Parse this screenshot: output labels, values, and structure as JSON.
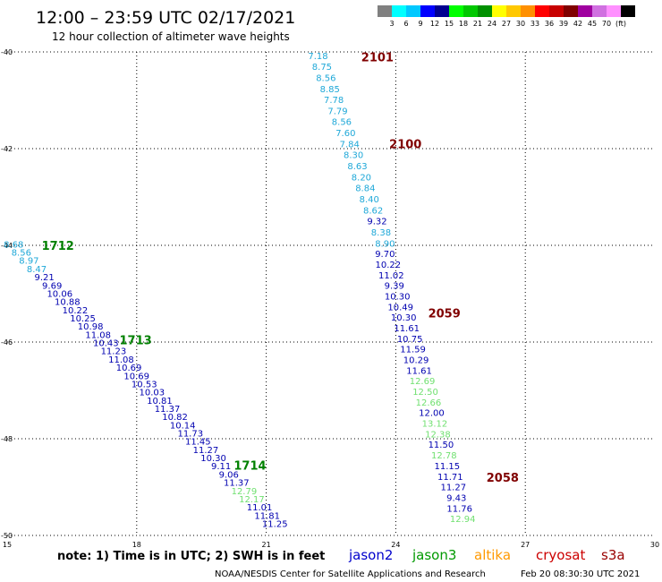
{
  "header": {
    "title": "12:00 – 23:59 UTC 02/17/2021",
    "subtitle": "12 hour collection of altimeter wave heights"
  },
  "color_scale": {
    "unit": "(ft)",
    "bins": [
      {
        "label": "",
        "color": "#808080"
      },
      {
        "label": "3",
        "color": "#00ffff"
      },
      {
        "label": "6",
        "color": "#00c8ff"
      },
      {
        "label": "9",
        "color": "#0000ff"
      },
      {
        "label": "12",
        "color": "#000090"
      },
      {
        "label": "15",
        "color": "#00ff00"
      },
      {
        "label": "18",
        "color": "#00c800"
      },
      {
        "label": "21",
        "color": "#009000"
      },
      {
        "label": "24",
        "color": "#ffff00"
      },
      {
        "label": "27",
        "color": "#ffc800"
      },
      {
        "label": "30",
        "color": "#ff9000"
      },
      {
        "label": "33",
        "color": "#ff0000"
      },
      {
        "label": "36",
        "color": "#c80000"
      },
      {
        "label": "39",
        "color": "#800000"
      },
      {
        "label": "42",
        "color": "#a000a0"
      },
      {
        "label": "45",
        "color": "#d070e0"
      },
      {
        "label": "70",
        "color": "#ff90ff"
      },
      {
        "label": "",
        "color": "#000000"
      }
    ]
  },
  "chart_data": {
    "type": "scatter",
    "title": "12:00 – 23:59 UTC 02/17/2021",
    "subtitle": "12 hour collection of altimeter wave heights",
    "xlim": [
      15,
      30
    ],
    "ylim": [
      -50,
      -40
    ],
    "x_ticks": [
      "15",
      "18",
      "21",
      "24",
      "27",
      "30"
    ],
    "y_ticks": [
      "-40",
      "-42",
      "-44",
      "-46",
      "-48",
      "-50"
    ],
    "colors": {
      "cyan": "#1fa8d8",
      "navy": "#0000b0",
      "light_green": "#70e070"
    },
    "pass_labels": [
      {
        "text": "2101",
        "x": 23.2,
        "y": -40.1,
        "color": "#800000"
      },
      {
        "text": "2100",
        "x": 23.85,
        "y": -41.9,
        "color": "#800000"
      },
      {
        "text": "2059",
        "x": 24.75,
        "y": -45.4,
        "color": "#800000"
      },
      {
        "text": "2058",
        "x": 26.1,
        "y": -48.8,
        "color": "#800000"
      },
      {
        "text": "1712",
        "x": 15.8,
        "y": -44.0,
        "color": "#008000"
      },
      {
        "text": "1713",
        "x": 17.6,
        "y": -45.95,
        "color": "#008000"
      },
      {
        "text": "1714",
        "x": 20.25,
        "y": -48.55,
        "color": "#008000"
      }
    ],
    "tracks": [
      {
        "name": "",
        "x_start": 22.2,
        "y_start": -40.07,
        "x_end": 23.75,
        "y_end": -43.95,
        "labels": [
          "7.18",
          "8.75",
          "8.56",
          "8.85",
          "7.78",
          "7.79",
          "8.56",
          "7.60",
          "7.84",
          "8.30",
          "8.63",
          "8.20",
          "8.84",
          "8.40",
          "8.62",
          "9.32",
          "8.38",
          "8.90"
        ],
        "colors": [
          "cyan",
          "cyan",
          "cyan",
          "cyan",
          "cyan",
          "cyan",
          "cyan",
          "cyan",
          "cyan",
          "cyan",
          "cyan",
          "cyan",
          "cyan",
          "cyan",
          "cyan",
          "navy",
          "cyan",
          "cyan"
        ]
      },
      {
        "name": "",
        "x_start": 23.75,
        "y_start": -44.17,
        "x_end": 25.55,
        "y_end": -49.65,
        "labels": [
          "9.70",
          "10.22",
          "11.02",
          "9.39",
          "10.30",
          "10.49",
          "10.30",
          "11.61",
          "10.75",
          "11.59",
          "10.29",
          "11.61",
          "12.69",
          "12.50",
          "12.66",
          "12.00",
          "13.12",
          "12.38",
          "11.50",
          "12.78",
          "11.15",
          "11.71",
          "11.27",
          "9.43",
          "11.76",
          "12.94"
        ],
        "colors": [
          "navy",
          "navy",
          "navy",
          "navy",
          "navy",
          "navy",
          "navy",
          "navy",
          "navy",
          "navy",
          "navy",
          "navy",
          "light_green",
          "light_green",
          "light_green",
          "navy",
          "light_green",
          "light_green",
          "navy",
          "light_green",
          "navy",
          "navy",
          "navy",
          "navy",
          "navy",
          "light_green"
        ]
      },
      {
        "name": "",
        "x_start": 15.15,
        "y_start": -43.97,
        "x_end": 21.2,
        "y_end": -49.75,
        "labels": [
          "8.68",
          "8.56",
          "8.97",
          "8.47",
          "9.21",
          "9.69",
          "10.06",
          "10.88",
          "10.22",
          "10.25",
          "10.98",
          "11.08",
          "10.43",
          "11.23",
          "11.08",
          "10.69",
          "10.69",
          "10.53",
          "10.03",
          "10.81",
          "11.37",
          "10.82",
          "10.14",
          "11.73",
          "11.45",
          "11.27",
          "10.30",
          "9.11",
          "9.06",
          "11.37",
          "12.79",
          "12.17",
          "11.01",
          "11.81",
          "11.25"
        ],
        "colors": [
          "cyan",
          "cyan",
          "cyan",
          "cyan",
          "navy",
          "navy",
          "navy",
          "navy",
          "navy",
          "navy",
          "navy",
          "navy",
          "navy",
          "navy",
          "navy",
          "navy",
          "navy",
          "navy",
          "navy",
          "navy",
          "navy",
          "navy",
          "navy",
          "navy",
          "navy",
          "navy",
          "navy",
          "navy",
          "navy",
          "navy",
          "light_green",
          "light_green",
          "navy",
          "navy",
          "navy"
        ]
      }
    ]
  },
  "footer": {
    "note": "note:  1) Time is in UTC;  2) SWH is in feet",
    "satellites": [
      {
        "name": "jason2",
        "color": "#0000cc"
      },
      {
        "name": "jason3",
        "color": "#009900"
      },
      {
        "name": "altika",
        "color": "#ff9900"
      },
      {
        "name": "cryosat",
        "color": "#cc0000"
      },
      {
        "name": "s3a",
        "color": "#990000"
      }
    ],
    "credit": "NOAA/NESDIS Center for Satellite Applications and Research",
    "timestamp": "Feb 20 08:30:30 UTC 2021"
  }
}
